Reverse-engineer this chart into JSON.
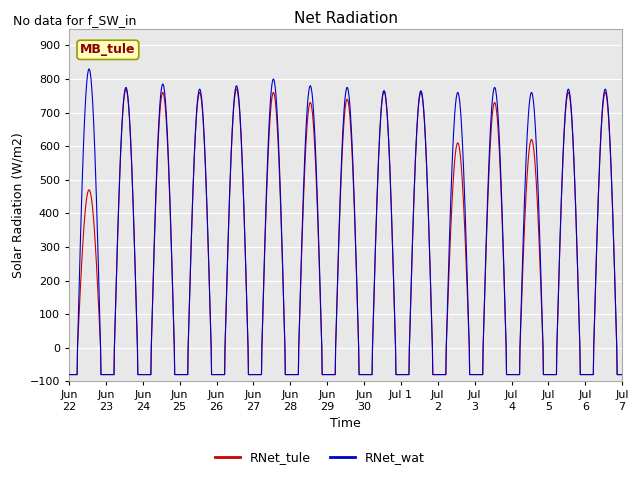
{
  "title": "Net Radiation",
  "subtitle": "No data for f_SW_in",
  "ylabel": "Solar Radiation (W/m2)",
  "xlabel": "Time",
  "ylim": [
    -100,
    950
  ],
  "yticks": [
    -100,
    0,
    100,
    200,
    300,
    400,
    500,
    600,
    700,
    800,
    900
  ],
  "color_tule": "#cc0000",
  "color_wat": "#0000cc",
  "legend_labels": [
    "RNet_tule",
    "RNet_wat"
  ],
  "annotation": "MB_tule",
  "bg_color": "#e8e8e8",
  "fig_color": "#ffffff",
  "title_fontsize": 11,
  "label_fontsize": 9,
  "tick_fontsize": 8,
  "subtitle_fontsize": 9,
  "legend_fontsize": 9,
  "annotation_fontsize": 9,
  "peaks_wat": [
    830,
    775,
    785,
    770,
    780,
    800,
    780,
    775,
    765,
    765,
    760,
    775,
    760,
    770,
    770
  ],
  "peaks_tule": [
    470,
    770,
    760,
    760,
    770,
    760,
    730,
    740,
    765,
    760,
    610,
    730,
    620,
    760,
    760
  ],
  "night_val": -80,
  "sunrise": 5.5,
  "sunset": 20.5,
  "days_total": 15
}
